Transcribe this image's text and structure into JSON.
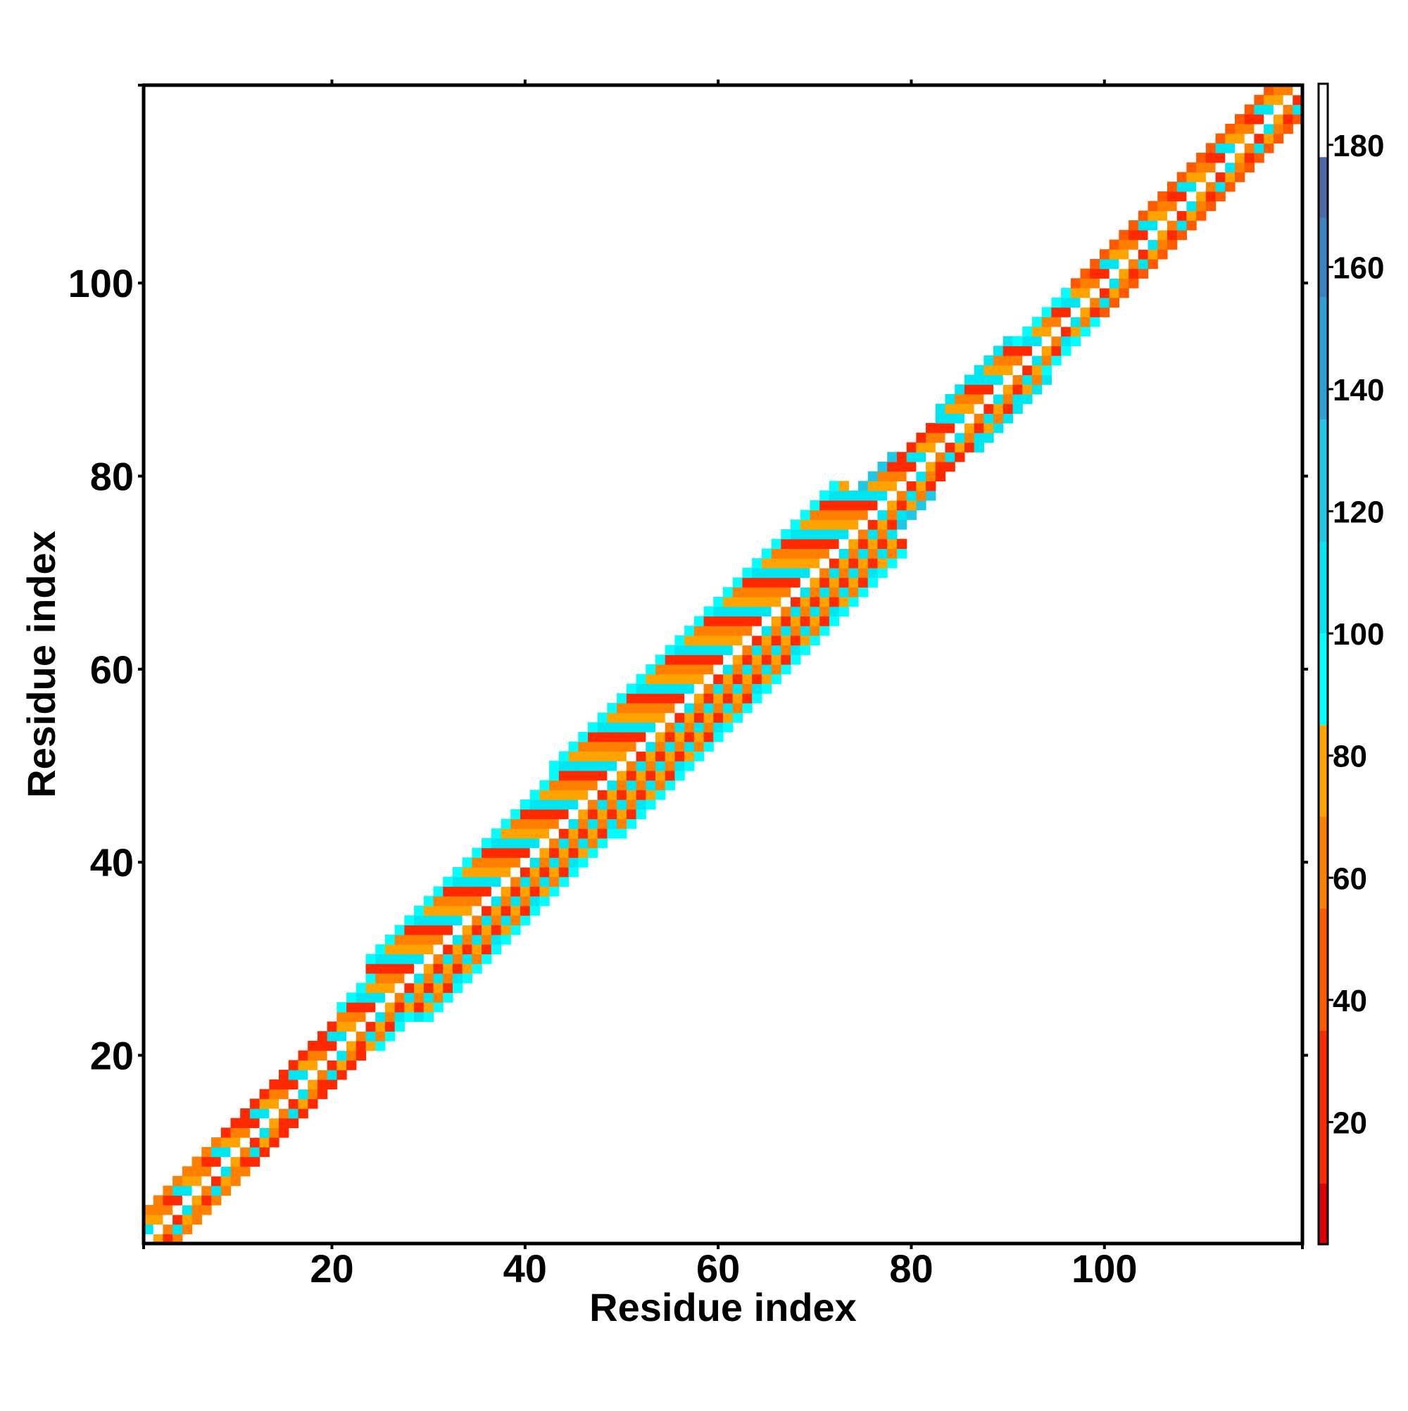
{
  "chart_data": {
    "type": "heatmap",
    "title": "",
    "xlabel": "Residue index",
    "ylabel": "Residue index",
    "xlim": [
      1,
      120
    ],
    "ylim": [
      1,
      120
    ],
    "x_ticks": [
      20,
      40,
      60,
      80,
      100
    ],
    "y_ticks": [
      20,
      40,
      60,
      80,
      100
    ],
    "x_tick_labels": [
      "20",
      "40",
      "60",
      "80",
      "100"
    ],
    "y_tick_labels": [
      "20",
      "40",
      "60",
      "80",
      "100"
    ],
    "grid": false,
    "legend": "colorbar-right",
    "colorbar": {
      "range": [
        0,
        190
      ],
      "ticks": [
        20,
        40,
        60,
        80,
        100,
        120,
        140,
        160,
        180
      ],
      "tick_labels": [
        "20",
        "40",
        "60",
        "80",
        "100",
        "120",
        "140",
        "160",
        "180"
      ],
      "bands": [
        {
          "from": 0,
          "to": 10,
          "color": "#dd0000"
        },
        {
          "from": 10,
          "to": 35,
          "color": "#ff2a00"
        },
        {
          "from": 35,
          "to": 55,
          "color": "#ff5a00"
        },
        {
          "from": 55,
          "to": 70,
          "color": "#ff7f00"
        },
        {
          "from": 70,
          "to": 85,
          "color": "#ffa300"
        },
        {
          "from": 85,
          "to": 100,
          "color": "#00ffff"
        },
        {
          "from": 100,
          "to": 115,
          "color": "#00e6f0"
        },
        {
          "from": 115,
          "to": 135,
          "color": "#20c8e6"
        },
        {
          "from": 135,
          "to": 155,
          "color": "#2ea0d4"
        },
        {
          "from": 155,
          "to": 168,
          "color": "#3c84c0"
        },
        {
          "from": 168,
          "to": 178,
          "color": "#4c6aa8"
        },
        {
          "from": 178,
          "to": 190,
          "color": "#ffffff"
        }
      ]
    },
    "band_profile": [
      {
        "from": 1,
        "to": 2,
        "halfwidth": 3,
        "outer_value": 95
      },
      {
        "from": 3,
        "to": 10,
        "halfwidth": 3,
        "outer_value": 60
      },
      {
        "from": 11,
        "to": 22,
        "halfwidth": 3,
        "outer_value": 25
      },
      {
        "from": 23,
        "to": 26,
        "halfwidth": 4,
        "outer_value": 95
      },
      {
        "from": 27,
        "to": 46,
        "halfwidth": 6,
        "outer_value": 95
      },
      {
        "from": 47,
        "to": 76,
        "halfwidth": 7,
        "outer_value": 95
      },
      {
        "from": 77,
        "to": 80,
        "halfwidth": 4,
        "outer_value": 130
      },
      {
        "from": 81,
        "to": 84,
        "halfwidth": 3,
        "outer_value": 25
      },
      {
        "from": 85,
        "to": 92,
        "halfwidth": 4,
        "outer_value": 110
      },
      {
        "from": 93,
        "to": 98,
        "halfwidth": 3,
        "outer_value": 95
      },
      {
        "from": 99,
        "to": 120,
        "halfwidth": 3,
        "outer_value": 40
      }
    ],
    "diagonal_value": 185,
    "pattern_values": [
      62,
      78,
      112,
      20
    ]
  }
}
